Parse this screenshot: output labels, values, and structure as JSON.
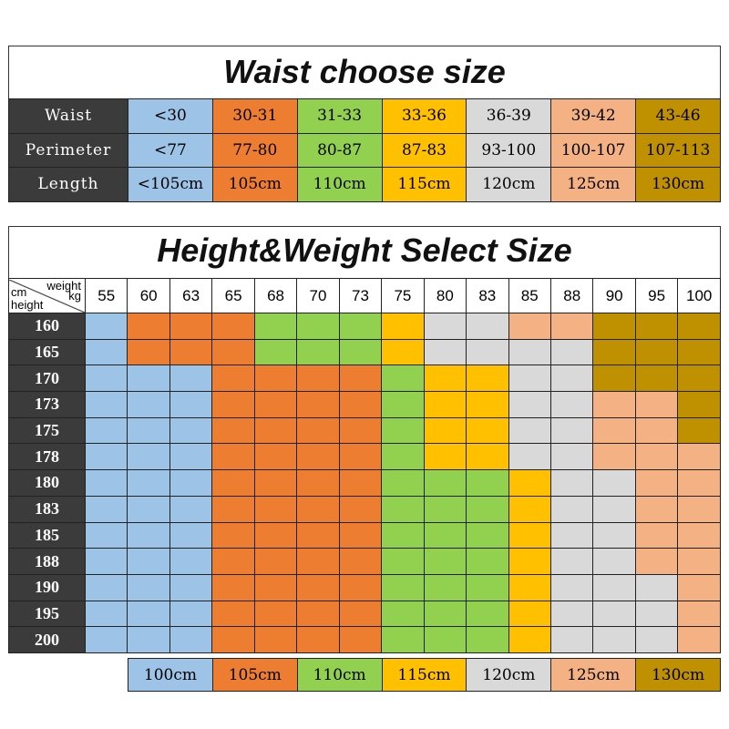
{
  "palette": {
    "blue": "#9dc3e6",
    "orange": "#ed7d31",
    "green": "#92d050",
    "yellow": "#ffc000",
    "gray": "#d9d9d9",
    "salmon": "#f4b183",
    "brown": "#bf9000"
  },
  "waist_chart": {
    "title": "Waist choose size",
    "size_colors": [
      "blue",
      "orange",
      "green",
      "yellow",
      "gray",
      "salmon",
      "brown"
    ],
    "rows": [
      {
        "label": "Waist",
        "values": [
          "<30",
          "30-31",
          "31-33",
          "33-36",
          "36-39",
          "39-42",
          "43-46"
        ]
      },
      {
        "label": "Perimeter",
        "values": [
          "<77",
          "77-80",
          "80-87",
          "87-83",
          "93-100",
          "100-107",
          "107-113"
        ]
      },
      {
        "label": "Length",
        "values": [
          "<105cm",
          "105cm",
          "110cm",
          "115cm",
          "120cm",
          "125cm",
          "130cm"
        ]
      }
    ]
  },
  "hw_chart": {
    "title": "Height&Weight Select Size",
    "corner": {
      "top": "weight",
      "unit_weight": "kg",
      "unit_height": "cm",
      "side": "height"
    },
    "weights": [
      "55",
      "60",
      "63",
      "65",
      "68",
      "70",
      "73",
      "75",
      "80",
      "83",
      "85",
      "88",
      "90",
      "95",
      "100"
    ],
    "rows": [
      {
        "height": "160",
        "sizes": [
          0,
          1,
          1,
          1,
          2,
          2,
          2,
          3,
          4,
          4,
          5,
          5,
          6,
          6,
          6
        ]
      },
      {
        "height": "165",
        "sizes": [
          0,
          1,
          1,
          1,
          2,
          2,
          2,
          3,
          4,
          4,
          4,
          4,
          6,
          6,
          6
        ]
      },
      {
        "height": "170",
        "sizes": [
          0,
          0,
          0,
          1,
          1,
          1,
          1,
          2,
          3,
          3,
          4,
          4,
          6,
          6,
          6
        ]
      },
      {
        "height": "173",
        "sizes": [
          0,
          0,
          0,
          1,
          1,
          1,
          1,
          2,
          3,
          3,
          4,
          4,
          5,
          5,
          6
        ]
      },
      {
        "height": "175",
        "sizes": [
          0,
          0,
          0,
          1,
          1,
          1,
          1,
          2,
          3,
          3,
          4,
          4,
          5,
          5,
          6
        ]
      },
      {
        "height": "178",
        "sizes": [
          0,
          0,
          0,
          1,
          1,
          1,
          1,
          2,
          3,
          3,
          4,
          4,
          5,
          5,
          5
        ]
      },
      {
        "height": "180",
        "sizes": [
          0,
          0,
          0,
          1,
          1,
          1,
          1,
          2,
          2,
          2,
          3,
          4,
          4,
          5,
          5
        ]
      },
      {
        "height": "183",
        "sizes": [
          0,
          0,
          0,
          1,
          1,
          1,
          1,
          2,
          2,
          2,
          3,
          4,
          4,
          5,
          5
        ]
      },
      {
        "height": "185",
        "sizes": [
          0,
          0,
          0,
          1,
          1,
          1,
          1,
          2,
          2,
          2,
          3,
          4,
          4,
          5,
          5
        ]
      },
      {
        "height": "188",
        "sizes": [
          0,
          0,
          0,
          1,
          1,
          1,
          1,
          2,
          2,
          2,
          3,
          4,
          4,
          5,
          5
        ]
      },
      {
        "height": "190",
        "sizes": [
          0,
          0,
          0,
          1,
          1,
          1,
          1,
          2,
          2,
          2,
          3,
          4,
          4,
          4,
          5
        ]
      },
      {
        "height": "195",
        "sizes": [
          0,
          0,
          0,
          1,
          1,
          1,
          1,
          2,
          2,
          2,
          3,
          4,
          4,
          4,
          5
        ]
      },
      {
        "height": "200",
        "sizes": [
          0,
          0,
          0,
          1,
          1,
          1,
          1,
          2,
          2,
          2,
          3,
          4,
          4,
          4,
          5
        ]
      }
    ],
    "legend": [
      {
        "label": "100cm",
        "color": "blue"
      },
      {
        "label": "105cm",
        "color": "orange"
      },
      {
        "label": "110cm",
        "color": "green"
      },
      {
        "label": "115cm",
        "color": "yellow"
      },
      {
        "label": "120cm",
        "color": "gray"
      },
      {
        "label": "125cm",
        "color": "salmon"
      },
      {
        "label": "130cm",
        "color": "brown"
      }
    ]
  }
}
